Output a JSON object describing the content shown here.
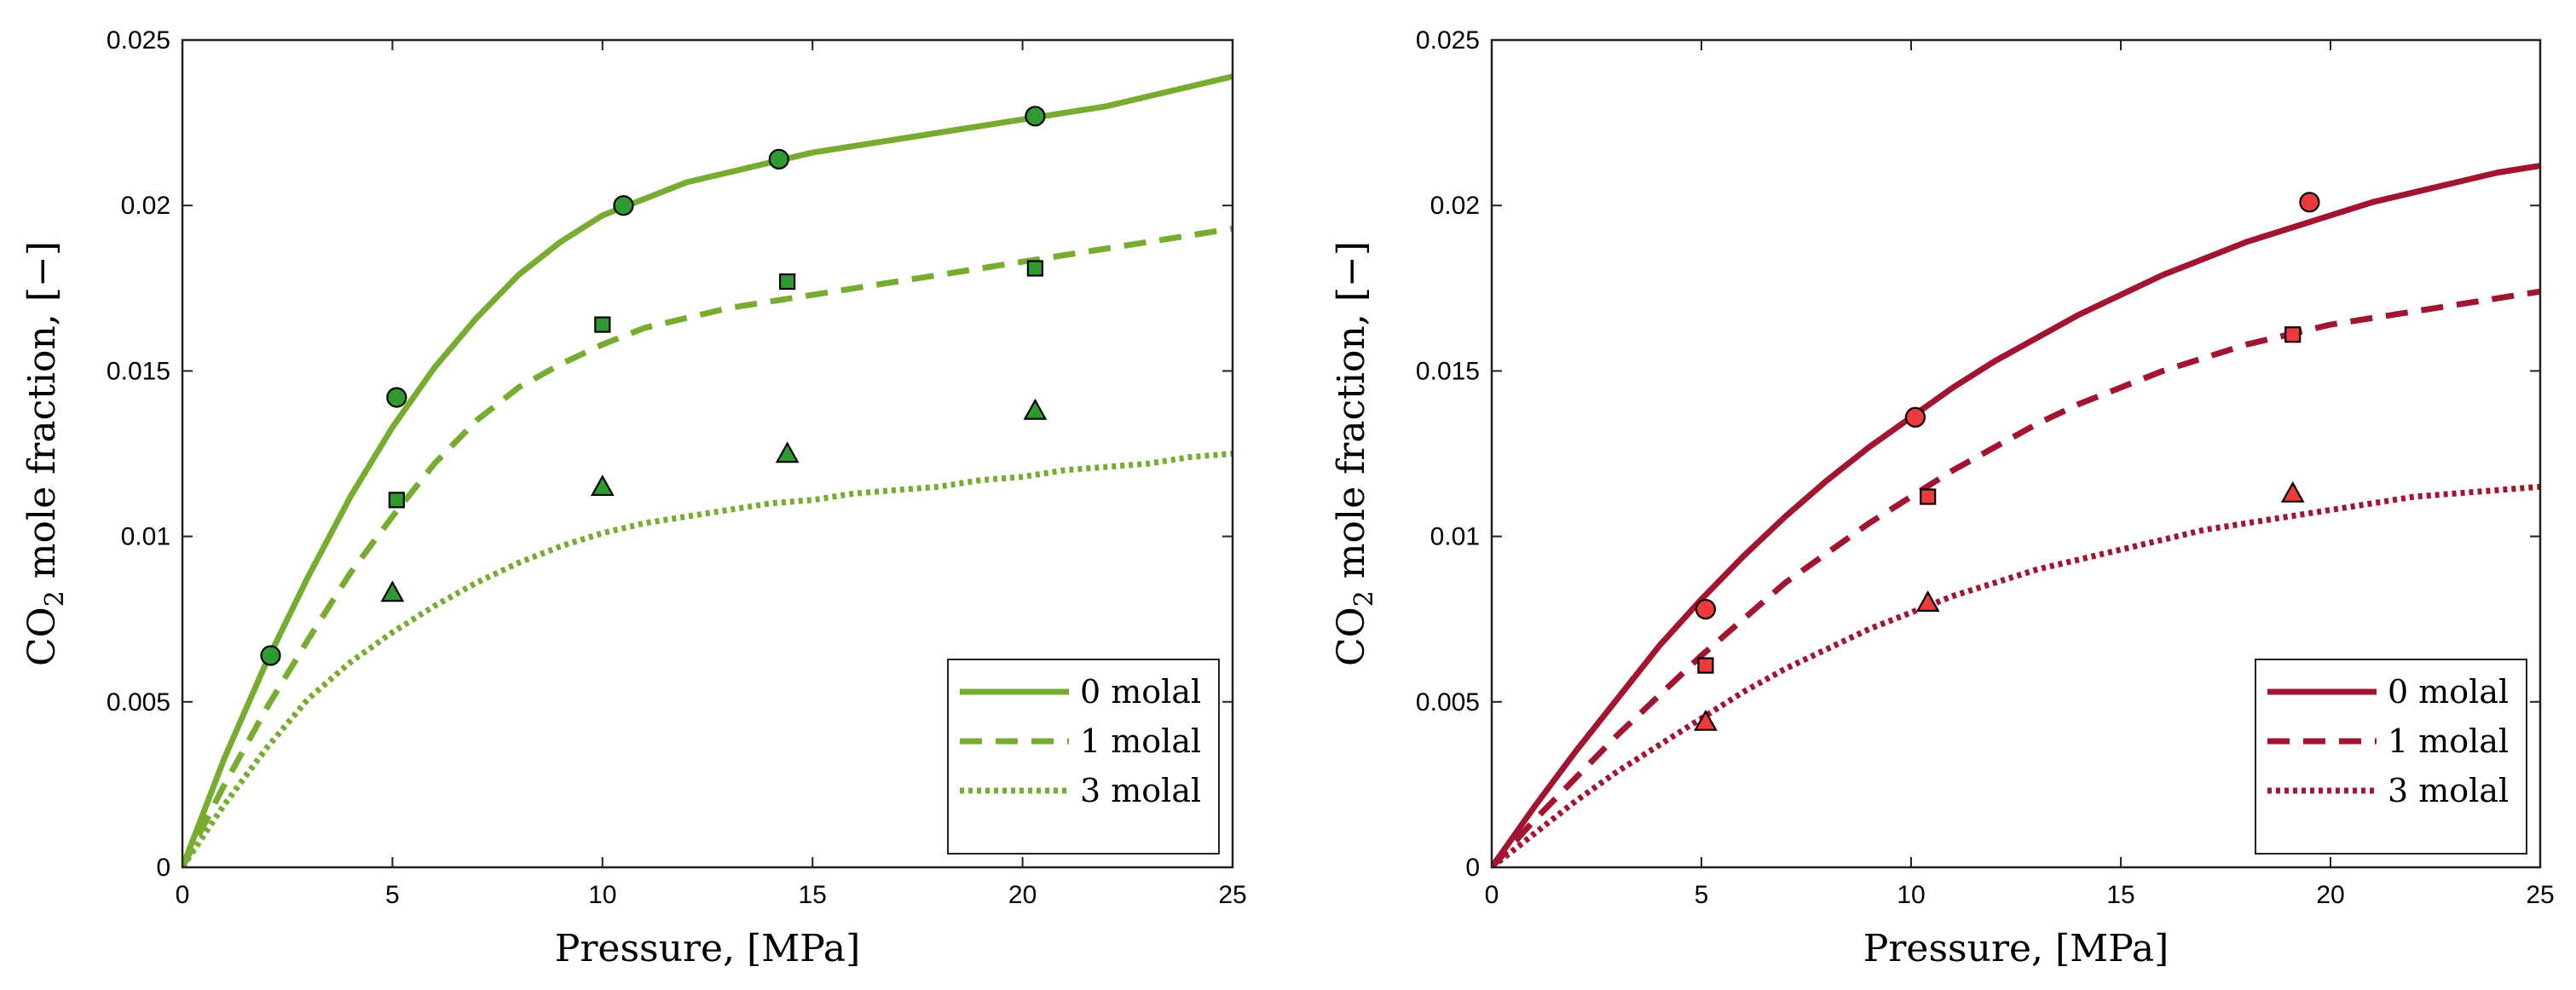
{
  "chart_data": [
    {
      "type": "line",
      "color": "#77AC30",
      "marker_fill": "#2F9A2F",
      "xlabel": "Pressure,  [MPa]",
      "ylabel_prefix": "CO",
      "ylabel_sub": "2",
      "ylabel_suffix": " mole fraction,  [−]",
      "xlim": [
        0,
        25
      ],
      "ylim": [
        0,
        0.025
      ],
      "x_ticks": [
        0,
        5,
        10,
        15,
        20,
        25
      ],
      "y_ticks": [
        0,
        0.005,
        0.01,
        0.015,
        0.02,
        0.025
      ],
      "x_tick_labels": [
        "0",
        "5",
        "10",
        "15",
        "20",
        "25"
      ],
      "y_tick_labels": [
        "0",
        "0.005",
        "0.01",
        "0.015",
        "0.02",
        "0.025"
      ],
      "legend_position": "bottom-right",
      "series": [
        {
          "name": "0 molal",
          "line_style": "solid",
          "marker": "circle",
          "curve_x": [
            0,
            1,
            2,
            3,
            4,
            5,
            6,
            7,
            8,
            9,
            10,
            11,
            12,
            13,
            14,
            15,
            16,
            17,
            18,
            19,
            20,
            21,
            22,
            23,
            24,
            25
          ],
          "curve_y": [
            0,
            0.0033,
            0.0062,
            0.0088,
            0.0112,
            0.0133,
            0.0151,
            0.0166,
            0.0179,
            0.0189,
            0.0197,
            0.0202,
            0.0207,
            0.021,
            0.0213,
            0.0216,
            0.0218,
            0.022,
            0.0222,
            0.0224,
            0.0226,
            0.0228,
            0.023,
            0.0233,
            0.0236,
            0.0239
          ],
          "points_x": [
            2.1,
            5.1,
            10.5,
            14.2,
            20.3
          ],
          "points_y": [
            0.0064,
            0.0142,
            0.02,
            0.0214,
            0.0227
          ]
        },
        {
          "name": "1 molal",
          "line_style": "dashed",
          "marker": "square",
          "curve_x": [
            0,
            1,
            2,
            3,
            4,
            5,
            6,
            7,
            8,
            9,
            10,
            11,
            12,
            13,
            14,
            15,
            16,
            17,
            18,
            19,
            20,
            21,
            22,
            23,
            24,
            25
          ],
          "curve_y": [
            0,
            0.0025,
            0.0048,
            0.0069,
            0.0089,
            0.0106,
            0.0122,
            0.0135,
            0.0145,
            0.0152,
            0.0158,
            0.0163,
            0.0166,
            0.0169,
            0.0171,
            0.0173,
            0.0175,
            0.0177,
            0.0179,
            0.0181,
            0.0183,
            0.0185,
            0.0187,
            0.0189,
            0.0191,
            0.0193
          ],
          "points_x": [
            5.1,
            10.0,
            14.4,
            20.3
          ],
          "points_y": [
            0.0111,
            0.0164,
            0.0177,
            0.0181
          ]
        },
        {
          "name": "3 molal",
          "line_style": "dotted",
          "marker": "triangle",
          "curve_x": [
            0,
            1,
            2,
            3,
            4,
            5,
            6,
            7,
            8,
            9,
            10,
            11,
            12,
            13,
            14,
            15,
            16,
            17,
            18,
            19,
            20,
            21,
            22,
            23,
            24,
            25
          ],
          "curve_y": [
            0,
            0.0019,
            0.0036,
            0.0051,
            0.0062,
            0.0071,
            0.0079,
            0.0086,
            0.0092,
            0.0097,
            0.0101,
            0.0104,
            0.0106,
            0.0108,
            0.011,
            0.0111,
            0.0113,
            0.0114,
            0.0115,
            0.0117,
            0.0118,
            0.012,
            0.0121,
            0.0122,
            0.0124,
            0.0125
          ],
          "points_x": [
            5.0,
            10.0,
            14.4,
            20.3
          ],
          "points_y": [
            0.0083,
            0.0115,
            0.0125,
            0.0138
          ]
        }
      ]
    },
    {
      "type": "line",
      "color": "#A2142F",
      "marker_fill": "#EE3A3A",
      "xlabel": "Pressure,  [MPa]",
      "ylabel_prefix": "CO",
      "ylabel_sub": "2",
      "ylabel_suffix": " mole fraction,  [−]",
      "xlim": [
        0,
        25
      ],
      "ylim": [
        0,
        0.025
      ],
      "x_ticks": [
        0,
        5,
        10,
        15,
        20,
        25
      ],
      "y_ticks": [
        0,
        0.005,
        0.01,
        0.015,
        0.02,
        0.025
      ],
      "x_tick_labels": [
        "0",
        "5",
        "10",
        "15",
        "20",
        "25"
      ],
      "y_tick_labels": [
        "0",
        "0.005",
        "0.01",
        "0.015",
        "0.02",
        "0.025"
      ],
      "legend_position": "bottom-right",
      "series": [
        {
          "name": "0 molal",
          "line_style": "solid",
          "marker": "circle",
          "curve_x": [
            0,
            1,
            2,
            3,
            4,
            5,
            6,
            7,
            8,
            9,
            10,
            11,
            12,
            13,
            14,
            15,
            16,
            17,
            18,
            19,
            20,
            21,
            22,
            23,
            24,
            25
          ],
          "curve_y": [
            0,
            0.0018,
            0.0035,
            0.0051,
            0.0067,
            0.0081,
            0.0094,
            0.0106,
            0.0117,
            0.0127,
            0.0136,
            0.0145,
            0.0153,
            0.016,
            0.0167,
            0.0173,
            0.0179,
            0.0184,
            0.0189,
            0.0193,
            0.0197,
            0.0201,
            0.0204,
            0.0207,
            0.021,
            0.0212
          ],
          "points_x": [
            5.1,
            10.1,
            19.5
          ],
          "points_y": [
            0.0078,
            0.0136,
            0.0201
          ]
        },
        {
          "name": "1 molal",
          "line_style": "dashed",
          "marker": "square",
          "curve_x": [
            0,
            1,
            2,
            3,
            4,
            5,
            6,
            7,
            8,
            9,
            10,
            11,
            12,
            13,
            14,
            15,
            16,
            17,
            18,
            19,
            20,
            21,
            22,
            23,
            24,
            25
          ],
          "curve_y": [
            0,
            0.0014,
            0.0027,
            0.004,
            0.0052,
            0.0064,
            0.0075,
            0.0086,
            0.0095,
            0.0104,
            0.0112,
            0.012,
            0.0127,
            0.0134,
            0.014,
            0.0145,
            0.015,
            0.0154,
            0.0158,
            0.0161,
            0.0164,
            0.0166,
            0.0168,
            0.017,
            0.0172,
            0.0174
          ],
          "points_x": [
            5.1,
            10.4,
            19.1
          ],
          "points_y": [
            0.0061,
            0.0112,
            0.0161
          ]
        },
        {
          "name": "3 molal",
          "line_style": "dotted",
          "marker": "triangle",
          "curve_x": [
            0,
            1,
            2,
            3,
            4,
            5,
            6,
            7,
            8,
            9,
            10,
            11,
            12,
            13,
            14,
            15,
            16,
            17,
            18,
            19,
            20,
            21,
            22,
            23,
            24,
            25
          ],
          "curve_y": [
            0,
            0.001,
            0.002,
            0.0029,
            0.0037,
            0.0045,
            0.0053,
            0.006,
            0.0066,
            0.0072,
            0.0077,
            0.0082,
            0.0086,
            0.009,
            0.0093,
            0.0096,
            0.0099,
            0.0102,
            0.0104,
            0.0106,
            0.0108,
            0.011,
            0.0112,
            0.0113,
            0.0114,
            0.0115
          ],
          "points_x": [
            5.1,
            10.4,
            19.1
          ],
          "points_y": [
            0.0044,
            0.008,
            0.0113
          ]
        }
      ]
    }
  ]
}
